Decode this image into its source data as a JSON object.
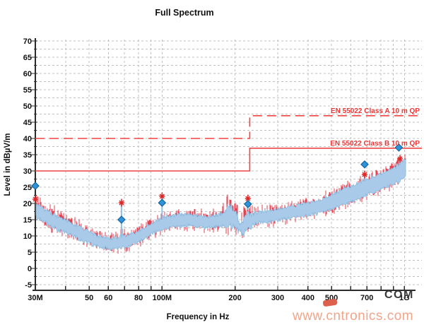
{
  "title": "Full Spectrum",
  "watermark": "www.cntronics.com",
  "logo_text": "COM",
  "chart_data": {
    "type": "line",
    "title": "Full Spectrum",
    "xlabel": "Frequency in Hz",
    "ylabel": "Level in dBµV/m",
    "x_scale": "log",
    "x_range_mhz": [
      30,
      1000
    ],
    "ylim": [
      -5,
      70
    ],
    "grid": "dashed gray; horizontal every 2.5 dB; vertical at log-decade steps",
    "legend_position": "labels on limit lines, right side",
    "y_ticks": [
      70,
      65,
      60,
      55,
      50,
      45,
      40,
      35,
      30,
      25,
      20,
      15,
      10,
      5,
      0,
      -5
    ],
    "grid_freqs_mhz": [
      40,
      50,
      60,
      70,
      80,
      90,
      100,
      200,
      300,
      400,
      500,
      600,
      700,
      800,
      900,
      1000
    ],
    "x_ticks": [
      {
        "mhz": 30,
        "label": "30M"
      },
      {
        "mhz": 50,
        "label": "50"
      },
      {
        "mhz": 60,
        "label": "60"
      },
      {
        "mhz": 80,
        "label": "80"
      },
      {
        "mhz": 100,
        "label": "100M"
      },
      {
        "mhz": 200,
        "label": "200"
      },
      {
        "mhz": 300,
        "label": "300"
      },
      {
        "mhz": 400,
        "label": "400"
      },
      {
        "mhz": 500,
        "label": "500"
      },
      {
        "mhz": 700,
        "label": "700"
      },
      {
        "mhz": 1000,
        "label": "1G"
      }
    ],
    "limit_lines": [
      {
        "name": "EN 55022 Class A 10 m QP",
        "low_db": 40,
        "high_db": 47,
        "break_mhz": 230,
        "style": "dashed"
      },
      {
        "name": "EN 55022 Class B 10 m QP",
        "low_db": 30,
        "high_db": 37,
        "break_mhz": 230,
        "style": "solid"
      }
    ],
    "trace_band": {
      "description": "measured EMI spectrum envelope (min-max band with red peak flecks), values in dBµV/m",
      "anchors": [
        {
          "mhz": 30,
          "lo": 16.0,
          "hi": 20.0,
          "jit": 1.6
        },
        {
          "mhz": 33,
          "lo": 14.0,
          "hi": 18.0,
          "jit": 1.4
        },
        {
          "mhz": 36,
          "lo": 12.5,
          "hi": 16.5,
          "jit": 1.3
        },
        {
          "mhz": 40,
          "lo": 11.0,
          "hi": 15.0,
          "jit": 1.2
        },
        {
          "mhz": 44,
          "lo": 9.5,
          "hi": 13.2,
          "jit": 1.2
        },
        {
          "mhz": 48,
          "lo": 8.2,
          "hi": 11.8,
          "jit": 1.1
        },
        {
          "mhz": 52,
          "lo": 7.2,
          "hi": 10.6,
          "jit": 1.1
        },
        {
          "mhz": 57,
          "lo": 6.3,
          "hi": 9.6,
          "jit": 1.0
        },
        {
          "mhz": 62,
          "lo": 6.0,
          "hi": 9.2,
          "jit": 1.0
        },
        {
          "mhz": 67,
          "lo": 6.2,
          "hi": 9.8,
          "jit": 1.0
        },
        {
          "mhz": 72,
          "lo": 6.8,
          "hi": 10.4,
          "jit": 1.0
        },
        {
          "mhz": 78,
          "lo": 7.8,
          "hi": 11.2,
          "jit": 1.0
        },
        {
          "mhz": 85,
          "lo": 9.2,
          "hi": 12.6,
          "jit": 1.0
        },
        {
          "mhz": 92,
          "lo": 10.8,
          "hi": 14.2,
          "jit": 1.0
        },
        {
          "mhz": 100,
          "lo": 12.0,
          "hi": 15.6,
          "jit": 1.0
        },
        {
          "mhz": 108,
          "lo": 12.6,
          "hi": 16.2,
          "jit": 1.0
        },
        {
          "mhz": 118,
          "lo": 13.0,
          "hi": 16.6,
          "jit": 1.0
        },
        {
          "mhz": 128,
          "lo": 13.2,
          "hi": 16.8,
          "jit": 1.0
        },
        {
          "mhz": 140,
          "lo": 12.9,
          "hi": 16.4,
          "jit": 1.0
        },
        {
          "mhz": 152,
          "lo": 12.5,
          "hi": 16.0,
          "jit": 1.0
        },
        {
          "mhz": 165,
          "lo": 12.7,
          "hi": 16.3,
          "jit": 1.2
        },
        {
          "mhz": 178,
          "lo": 13.1,
          "hi": 17.2,
          "jit": 1.8
        },
        {
          "mhz": 188,
          "lo": 13.4,
          "hi": 18.8,
          "jit": 2.2
        },
        {
          "mhz": 196,
          "lo": 12.9,
          "hi": 18.6,
          "jit": 2.3
        },
        {
          "mhz": 203,
          "lo": 11.8,
          "hi": 16.0,
          "jit": 2.0
        },
        {
          "mhz": 209,
          "lo": 10.8,
          "hi": 14.2,
          "jit": 1.8
        },
        {
          "mhz": 215,
          "lo": 10.6,
          "hi": 14.0,
          "jit": 1.8
        },
        {
          "mhz": 221,
          "lo": 11.8,
          "hi": 16.5,
          "jit": 2.0
        },
        {
          "mhz": 226,
          "lo": 12.6,
          "hi": 18.5,
          "jit": 2.2
        },
        {
          "mhz": 231,
          "lo": 12.0,
          "hi": 16.0,
          "jit": 1.8
        },
        {
          "mhz": 238,
          "lo": 13.2,
          "hi": 16.8,
          "jit": 1.4
        },
        {
          "mhz": 250,
          "lo": 14.0,
          "hi": 17.4,
          "jit": 1.1
        },
        {
          "mhz": 268,
          "lo": 14.3,
          "hi": 17.8,
          "jit": 1.0
        },
        {
          "mhz": 290,
          "lo": 14.6,
          "hi": 18.1,
          "jit": 1.0
        },
        {
          "mhz": 315,
          "lo": 15.0,
          "hi": 18.6,
          "jit": 1.0
        },
        {
          "mhz": 345,
          "lo": 15.6,
          "hi": 19.3,
          "jit": 1.0
        },
        {
          "mhz": 380,
          "lo": 16.1,
          "hi": 19.9,
          "jit": 1.0
        },
        {
          "mhz": 415,
          "lo": 16.5,
          "hi": 20.4,
          "jit": 1.0
        },
        {
          "mhz": 450,
          "lo": 17.2,
          "hi": 21.2,
          "jit": 1.0
        },
        {
          "mhz": 480,
          "lo": 17.8,
          "hi": 22.0,
          "jit": 1.0
        },
        {
          "mhz": 510,
          "lo": 18.6,
          "hi": 23.0,
          "jit": 1.0
        },
        {
          "mhz": 545,
          "lo": 19.4,
          "hi": 24.0,
          "jit": 1.0
        },
        {
          "mhz": 580,
          "lo": 20.2,
          "hi": 24.9,
          "jit": 1.0
        },
        {
          "mhz": 620,
          "lo": 21.0,
          "hi": 25.8,
          "jit": 1.0
        },
        {
          "mhz": 660,
          "lo": 21.8,
          "hi": 26.7,
          "jit": 1.0
        },
        {
          "mhz": 700,
          "lo": 22.6,
          "hi": 27.5,
          "jit": 1.0
        },
        {
          "mhz": 750,
          "lo": 23.4,
          "hi": 28.3,
          "jit": 1.0
        },
        {
          "mhz": 800,
          "lo": 24.2,
          "hi": 29.2,
          "jit": 1.0
        },
        {
          "mhz": 850,
          "lo": 25.0,
          "hi": 30.0,
          "jit": 1.0
        },
        {
          "mhz": 900,
          "lo": 25.8,
          "hi": 31.0,
          "jit": 1.0
        },
        {
          "mhz": 950,
          "lo": 26.6,
          "hi": 32.0,
          "jit": 1.1
        },
        {
          "mhz": 1000,
          "lo": 27.8,
          "hi": 33.6,
          "jit": 1.2
        }
      ]
    },
    "spike_lines": [
      {
        "mhz": 68,
        "top_db": 20.2
      },
      {
        "mhz": 100,
        "top_db": 22.2
      },
      {
        "mhz": 226,
        "top_db": 21.5
      },
      {
        "mhz": 685,
        "top_db": 28.9
      },
      {
        "mhz": 958,
        "top_db": 33.7
      }
    ],
    "markers": {
      "qp_diamonds": [
        {
          "mhz": 30,
          "db": 25.4
        },
        {
          "mhz": 68,
          "db": 15.0
        },
        {
          "mhz": 100,
          "db": 20.2
        },
        {
          "mhz": 226,
          "db": 19.8
        },
        {
          "mhz": 685,
          "db": 32.0
        },
        {
          "mhz": 948,
          "db": 37.2
        }
      ],
      "peak_stars": [
        {
          "mhz": 30,
          "db": 21.3
        },
        {
          "mhz": 68,
          "db": 20.2
        },
        {
          "mhz": 100,
          "db": 22.2
        },
        {
          "mhz": 226,
          "db": 21.5
        },
        {
          "mhz": 685,
          "db": 28.9
        },
        {
          "mhz": 958,
          "db": 33.7
        }
      ]
    },
    "colors": {
      "band_fill": "#a9cbe9",
      "band_edge": "#8bb9de",
      "noise_red": "#e64052",
      "limit_red": "#ee4444",
      "diamond_fill": "#2e93d8",
      "diamond_edge": "#1565a0",
      "star_red": "#e02525",
      "grid": "#c0c0c0",
      "axis": "#2b2b2b",
      "watermark": "#f2a58a",
      "logo": "#3a3a3a",
      "logo_mark": "#dd5f4e"
    }
  }
}
